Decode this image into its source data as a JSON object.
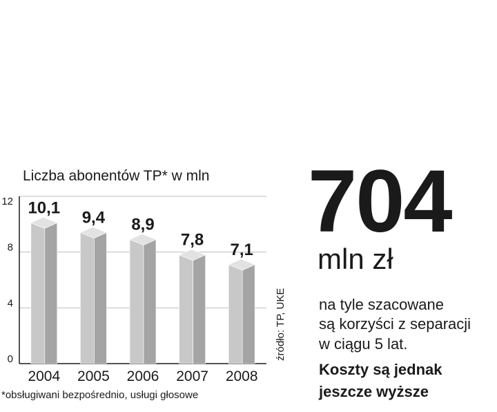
{
  "chart_data": {
    "type": "bar",
    "title": "Liczba abonentów TP* w mln",
    "categories": [
      "2004",
      "2005",
      "2006",
      "2007",
      "2008"
    ],
    "values": [
      10.1,
      9.4,
      8.9,
      7.8,
      7.1
    ],
    "value_labels": [
      "10,1",
      "9,4",
      "8,9",
      "7,8",
      "7,1"
    ],
    "y_ticks": [
      0,
      4,
      8,
      12
    ],
    "ylim": [
      0,
      12
    ],
    "grid": true,
    "footnote": "*obsługiwani bezpośrednio, usługi głosowe",
    "source": "źródło: TP, UKE",
    "colors": {
      "bar_front": "#c8c8c8",
      "bar_side": "#a4a4a4",
      "bar_top": "#e2e2e2",
      "grid": "#bdbdbd"
    }
  },
  "highlight": {
    "number": "704",
    "unit": "mln zł",
    "lines": [
      "na tyle szacowane",
      "są korzyści z separacji",
      "w ciągu 5 lat."
    ],
    "bold_lines": [
      "Koszty są jednak",
      "jeszcze wyższe"
    ]
  }
}
